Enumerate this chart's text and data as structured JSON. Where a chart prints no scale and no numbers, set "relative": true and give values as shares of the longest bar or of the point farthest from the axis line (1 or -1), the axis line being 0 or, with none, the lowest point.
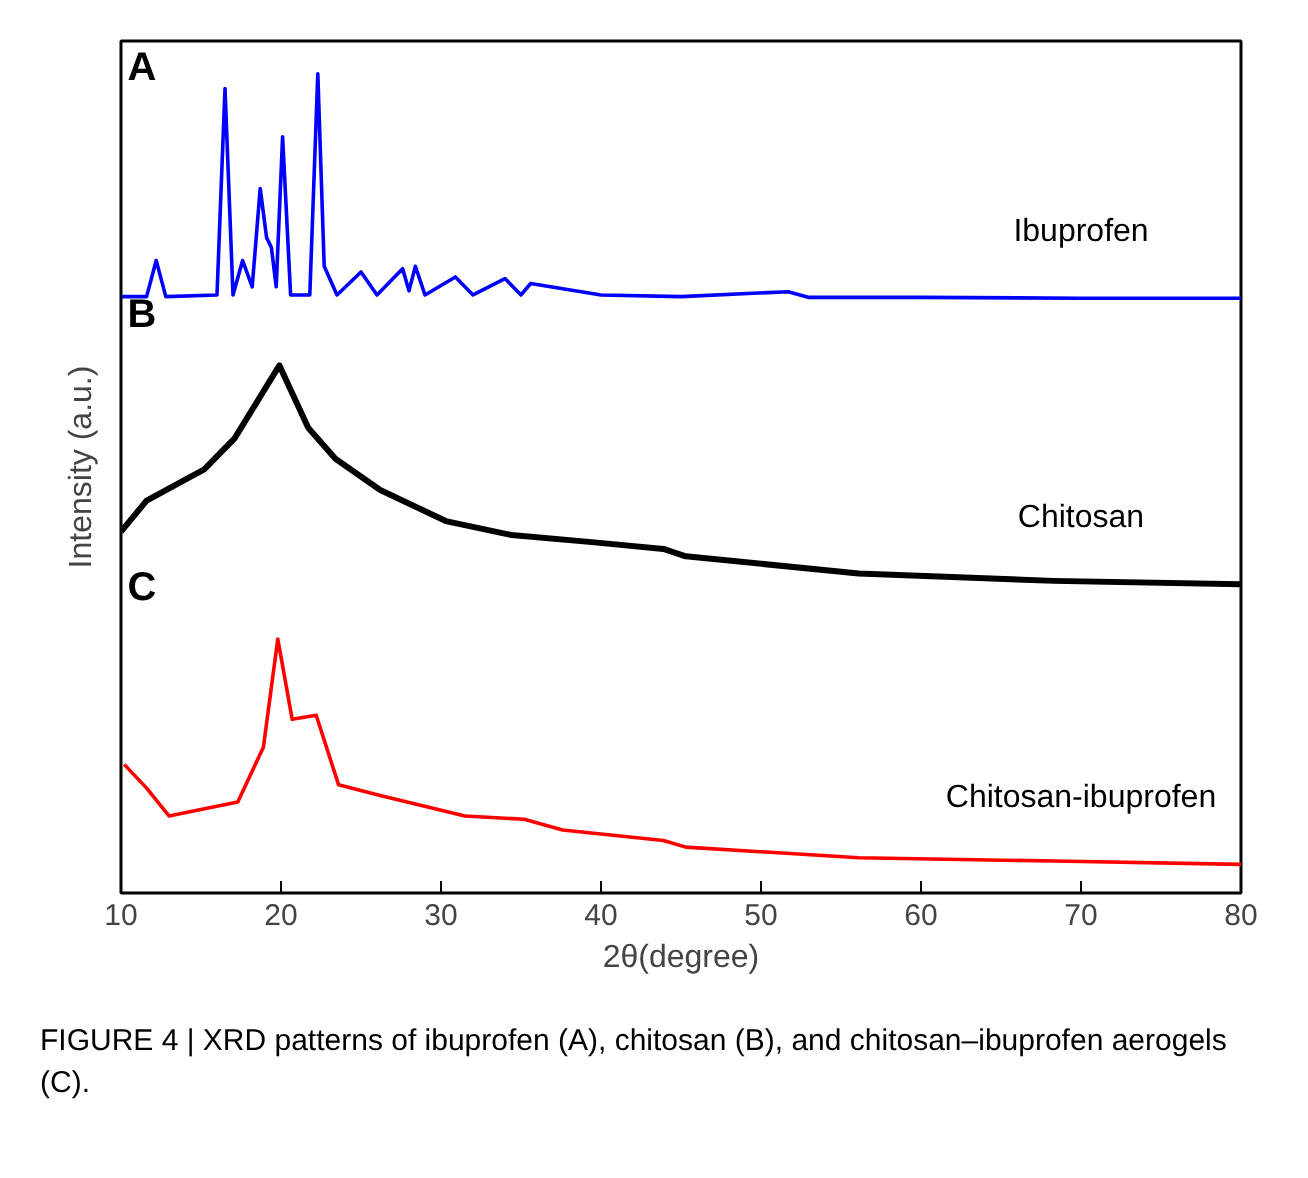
{
  "chart_data": {
    "type": "line",
    "relative": true,
    "xlabel": "2θ(degree)",
    "ylabel": "Intensity (a.u.)",
    "xlim": [
      10,
      80
    ],
    "xticks": [
      10,
      20,
      30,
      40,
      50,
      60,
      70,
      80
    ],
    "grid": false,
    "legend": false,
    "marker": "none",
    "line_style": "solid",
    "series": [
      {
        "name": "Ibuprofen",
        "color": "#0000ff",
        "x": [
          10,
          11.6,
          12.2,
          12.8,
          16.0,
          16.5,
          17.0,
          17.6,
          18.2,
          18.7,
          19.1,
          19.4,
          19.7,
          20.1,
          20.6,
          21.8,
          22.3,
          22.7,
          23.5,
          25.0,
          26.0,
          27.6,
          28.0,
          28.4,
          29.0,
          30.9,
          32.0,
          34.0,
          35.0,
          35.6,
          40.0,
          45.0,
          51.7,
          53.0,
          60.0,
          70.0,
          80.0
        ],
        "values": [
          0.728,
          0.728,
          0.772,
          0.728,
          0.73,
          0.982,
          0.73,
          0.772,
          0.74,
          0.86,
          0.8,
          0.788,
          0.74,
          0.923,
          0.73,
          0.73,
          1.0,
          0.765,
          0.73,
          0.758,
          0.73,
          0.762,
          0.735,
          0.765,
          0.73,
          0.752,
          0.73,
          0.75,
          0.73,
          0.744,
          0.73,
          0.728,
          0.734,
          0.727,
          0.727,
          0.726,
          0.726
        ]
      },
      {
        "name": "Chitosan",
        "color": "#000000",
        "x": [
          10,
          11.6,
          15.2,
          17.1,
          19.9,
          21.7,
          23.4,
          26.2,
          30.3,
          34.4,
          39.6,
          43.9,
          45.3,
          56.1,
          68.3,
          80.0
        ],
        "values": [
          0.441,
          0.479,
          0.517,
          0.555,
          0.644,
          0.568,
          0.53,
          0.492,
          0.454,
          0.437,
          0.428,
          0.42,
          0.411,
          0.39,
          0.381,
          0.377
        ]
      },
      {
        "name": "Chitosan-ibuprofen",
        "color": "#ff0000",
        "x": [
          10.2,
          11.6,
          13.0,
          17.3,
          18.9,
          19.8,
          20.7,
          22.2,
          23.6,
          26.2,
          31.5,
          35.2,
          37.6,
          43.9,
          45.3,
          56.1,
          68.3,
          80.0
        ],
        "values": [
          0.157,
          0.128,
          0.094,
          0.111,
          0.178,
          0.31,
          0.212,
          0.217,
          0.132,
          0.119,
          0.094,
          0.09,
          0.077,
          0.064,
          0.056,
          0.043,
          0.039,
          0.035
        ]
      }
    ],
    "annotations": [
      "A",
      "B",
      "C",
      "FIGURE 4 | XRD patterns of ibuprofen (A), chitosan (B), and chitosan–ibuprofen aerogels (C)."
    ]
  }
}
